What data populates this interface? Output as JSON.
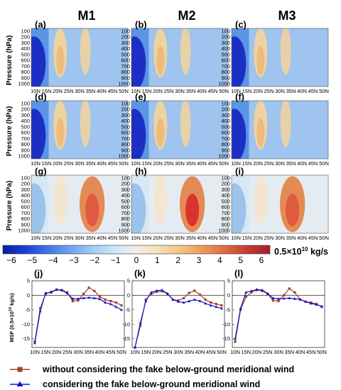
{
  "headers": [
    "M1",
    "M2",
    "M3"
  ],
  "panel_labels_top": [
    "(a)",
    "(b)",
    "(c)",
    "(d)",
    "(e)",
    "(f)",
    "(g)",
    "(h)",
    "(i)"
  ],
  "panel_labels_line": [
    "(j)",
    "(k)",
    "(l)"
  ],
  "y_axis_label": "Pressure (hPa)",
  "pressure_ticks": [
    "100",
    "200",
    "300",
    "400",
    "500",
    "600",
    "700",
    "800",
    "900",
    "1000"
  ],
  "lat_ticks": [
    "10N",
    "15N",
    "20N",
    "25N",
    "30N",
    "35N",
    "40N",
    "45N",
    "50N"
  ],
  "colorbar": {
    "ticks": [
      "−6",
      "−5",
      "−4",
      "−3",
      "−2",
      "−1",
      "0",
      "1",
      "2",
      "3",
      "4",
      "5",
      "6"
    ],
    "unit": "0.5×10",
    "unit_exp": "10",
    "unit_tail": " kg/s",
    "colors": [
      "#0a1d9e",
      "#1c3fd6",
      "#3e74e8",
      "#6ba3f0",
      "#9fcaf5",
      "#cfe6f7",
      "#f4eee6",
      "#f8dfb6",
      "#f5c47e",
      "#ec9a55",
      "#de6a42",
      "#c63a33",
      "#a51f2c"
    ]
  },
  "line_y_label": "MSF (0.5×10",
  "line_y_label_exp": "10",
  "line_y_label_tail": " kg/s)",
  "legend": [
    {
      "label": "without considering the fake below-ground meridional wind",
      "color": "#a0422a",
      "marker": "square"
    },
    {
      "label": "considering the fake below-ground meridional wind",
      "color": "#1a12c8",
      "marker": "triangle"
    }
  ],
  "chart_data": [
    {
      "type": "line",
      "panel": "(j)",
      "x": [
        "10N",
        "12.5N",
        "15N",
        "17.5N",
        "20N",
        "22.5N",
        "25N",
        "27.5N",
        "30N",
        "32.5N",
        "35N",
        "37.5N",
        "40N",
        "42.5N",
        "45N",
        "47.5N",
        "50N"
      ],
      "ylim": [
        -18,
        5
      ],
      "yticks": [
        5,
        0,
        -5,
        -10,
        -15
      ],
      "series": [
        {
          "name": "without considering the fake below-ground meridional wind",
          "values": [
            -16,
            -4.5,
            0.5,
            1.2,
            2,
            1.8,
            1,
            -2,
            -1.8,
            0.5,
            2.6,
            1.5,
            -0.5,
            -1.5,
            -2,
            -2.5,
            -3.5
          ]
        },
        {
          "name": "considering the fake below-ground meridional wind",
          "values": [
            -16.5,
            -5.5,
            0.8,
            1,
            1.9,
            1.7,
            0.7,
            -1.2,
            -1.2,
            -1,
            -0.8,
            -1,
            -1.3,
            -2.5,
            -3,
            -4,
            -5
          ]
        }
      ]
    },
    {
      "type": "line",
      "panel": "(k)",
      "x": [
        "10N",
        "12.5N",
        "15N",
        "17.5N",
        "20N",
        "22.5N",
        "25N",
        "27.5N",
        "30N",
        "32.5N",
        "35N",
        "37.5N",
        "40N",
        "42.5N",
        "45N",
        "47.5N",
        "50N"
      ],
      "ylim": [
        -18,
        5
      ],
      "yticks": [
        5,
        0,
        -5,
        -10,
        -15
      ],
      "series": [
        {
          "name": "without considering the fake below-ground meridional wind",
          "values": [
            -18,
            -10.5,
            -1.5,
            0.5,
            1.2,
            1.4,
            0.5,
            -1.5,
            -1.8,
            -1,
            0.8,
            1.6,
            0.2,
            -1.5,
            -2.5,
            -3,
            -3.5
          ]
        },
        {
          "name": "considering the fake below-ground meridional wind",
          "values": [
            -18,
            -9.5,
            -2,
            1,
            1.6,
            1.8,
            0.6,
            -1.5,
            -2.2,
            -2.5,
            -2,
            -1.5,
            -2,
            -2.8,
            -3.5,
            -4,
            -4.5
          ]
        }
      ]
    },
    {
      "type": "line",
      "panel": "(l)",
      "x": [
        "10N",
        "12.5N",
        "15N",
        "17.5N",
        "20N",
        "22.5N",
        "25N",
        "27.5N",
        "30N",
        "32.5N",
        "35N",
        "37.5N",
        "40N",
        "42.5N",
        "45N",
        "47.5N",
        "50N"
      ],
      "ylim": [
        -18,
        5
      ],
      "yticks": [
        5,
        0,
        -5,
        -10,
        -15
      ],
      "series": [
        {
          "name": "without considering the fake below-ground meridional wind",
          "values": [
            -16,
            -5,
            -0.5,
            1,
            1.8,
            1.5,
            0.5,
            -1.8,
            -2,
            0,
            2.3,
            1,
            -1.5,
            -2.2,
            -2.5,
            -3,
            -4
          ]
        },
        {
          "name": "considering the fake below-ground meridional wind",
          "values": [
            -15,
            -4.5,
            1,
            1.5,
            2,
            1.8,
            0.6,
            -1,
            -1.2,
            -1.1,
            -1,
            -1.2,
            -1.4,
            -2.2,
            -2.8,
            -3.2,
            -3.8
          ]
        }
      ]
    },
    {
      "type": "heatmap",
      "panels": [
        "(a)",
        "(b)",
        "(c)",
        "(d)",
        "(e)",
        "(f)",
        "(g)",
        "(h)",
        "(i)"
      ],
      "x": [
        "10N",
        "15N",
        "20N",
        "25N",
        "30N",
        "35N",
        "40N",
        "45N",
        "50N"
      ],
      "y": [
        "100",
        "200",
        "300",
        "400",
        "500",
        "600",
        "700",
        "800",
        "900",
        "1000"
      ],
      "color_range": [
        -6,
        6
      ]
    }
  ]
}
